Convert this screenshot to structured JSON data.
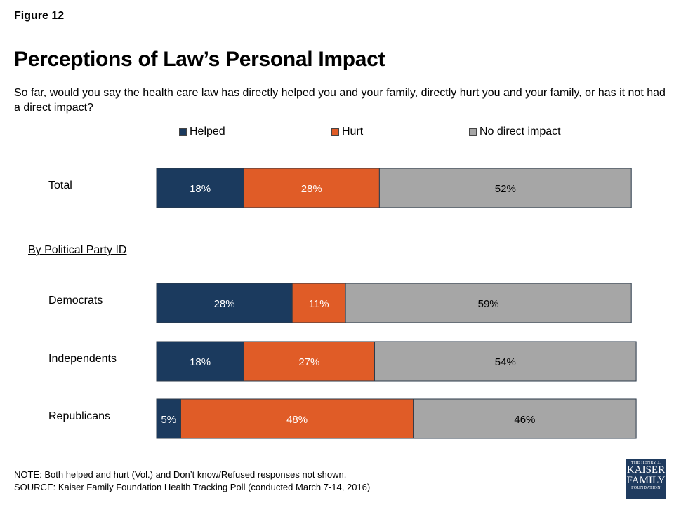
{
  "figure_label": "Figure 12",
  "title": "Perceptions of Law’s Personal Impact",
  "subtitle": "So far, would you say the health care law has directly helped you and your family, directly hurt you and your family, or has it not had a direct impact?",
  "group_header": "By Political Party ID",
  "notes": {
    "note": "NOTE: Both helped and hurt (Vol.) and Don’t know/Refused responses not shown.",
    "source": "SOURCE: Kaiser Family Foundation Health Tracking Poll (conducted March 7-14, 2016)"
  },
  "logo": {
    "line1": "THE HENRY J.",
    "line2": "KAISER",
    "line3": "FAMILY",
    "line4": "FOUNDATION"
  },
  "chart_data": {
    "type": "bar",
    "orientation": "horizontal",
    "stacked": true,
    "categories": [
      "Total",
      "Democrats",
      "Independents",
      "Republicans"
    ],
    "series": [
      {
        "name": "Helped",
        "color": "#1b3a5e",
        "values": [
          18,
          28,
          18,
          5
        ]
      },
      {
        "name": "Hurt",
        "color": "#e05c27",
        "values": [
          28,
          11,
          27,
          48
        ]
      },
      {
        "name": "No direct impact",
        "color": "#a6a6a6",
        "values": [
          52,
          59,
          54,
          46
        ]
      }
    ],
    "value_suffix": "%",
    "legend_position": "top",
    "grid": false
  }
}
